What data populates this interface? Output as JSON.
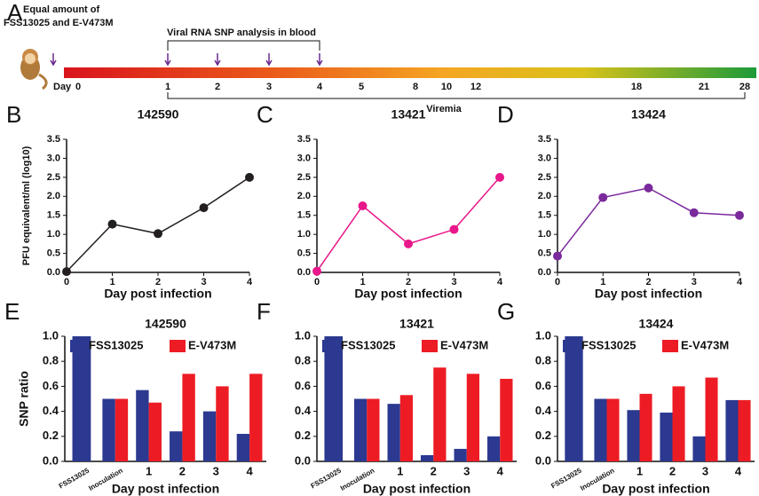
{
  "timeline": {
    "panel_label": "A",
    "note_lines": [
      "Equal amount of",
      "FSS13025 and E-V473M"
    ],
    "bracket_label": "Viral RNA SNP analysis in blood",
    "axis_label": "Day",
    "days": [
      0,
      1,
      2,
      3,
      4,
      5,
      8,
      10,
      12,
      18,
      21,
      28
    ],
    "span_label": "Viremia"
  },
  "chart_data": [
    {
      "type": "line",
      "panel_label": "B",
      "title": "142590",
      "y_label": "PFU equivalent/ml (log10)",
      "x_label": "Day post infection",
      "x": [
        0,
        1,
        2,
        3,
        4
      ],
      "values": [
        0.02,
        1.27,
        1.02,
        1.7,
        2.5
      ],
      "color": "#231f20",
      "xlim": [
        0,
        4
      ],
      "xticks": [
        0,
        1,
        2,
        3,
        4
      ],
      "ylim": [
        0,
        3.5
      ],
      "yticks": [
        {
          "value": 0,
          "label": "0.0"
        },
        0.5,
        {
          "value": 1,
          "label": "1.0"
        },
        1.5,
        {
          "value": 2,
          "label": "2.0"
        },
        2.5,
        {
          "value": 3,
          "label": "3.0"
        },
        3.5
      ]
    },
    {
      "type": "line",
      "panel_label": "C",
      "title": "13421",
      "x_label": "Day post infection",
      "x": [
        0,
        1,
        2,
        3,
        4
      ],
      "values": [
        0.03,
        1.75,
        0.75,
        1.13,
        2.5
      ],
      "color": "#e8178a",
      "xlim": [
        0,
        4
      ],
      "xticks": [
        0,
        1,
        2,
        3,
        4
      ],
      "ylim": [
        0,
        3.5
      ],
      "yticks": [
        {
          "value": 0,
          "label": "0.0"
        },
        0.5,
        {
          "value": 1,
          "label": "1.0"
        },
        1.5,
        {
          "value": 2,
          "label": "2.0"
        },
        2.5,
        {
          "value": 3,
          "label": "3.0"
        },
        3.5
      ]
    },
    {
      "type": "line",
      "panel_label": "D",
      "title": "13424",
      "x_label": "Day post infection",
      "x": [
        0,
        1,
        2,
        3,
        4
      ],
      "values": [
        0.43,
        1.97,
        2.22,
        1.57,
        1.5
      ],
      "color": "#7b2a9c",
      "xlim": [
        0,
        4
      ],
      "xticks": [
        0,
        1,
        2,
        3,
        4
      ],
      "ylim": [
        0,
        3.5
      ],
      "yticks": [
        {
          "value": 0,
          "label": "0.0"
        },
        0.5,
        {
          "value": 1,
          "label": "1.0"
        },
        1.5,
        {
          "value": 2,
          "label": "2.0"
        },
        2.5,
        {
          "value": 3,
          "label": "3.0"
        },
        3.5
      ]
    },
    {
      "type": "bar",
      "panel_label": "E",
      "title": "142590",
      "y_label": "SNP ratio",
      "x_label": "Day post infection",
      "categories": [
        "FSS13025",
        "Inoculation",
        "1",
        "2",
        "3",
        "4"
      ],
      "series": [
        {
          "name": "FSS13025",
          "color": "#2b3990",
          "values": [
            1.0,
            0.5,
            0.57,
            0.24,
            0.4,
            0.22
          ]
        },
        {
          "name": "E-V473M",
          "color": "#ed1c24",
          "values": [
            null,
            0.5,
            0.47,
            0.7,
            0.6,
            0.7
          ]
        }
      ],
      "ylim": [
        0,
        1
      ],
      "yticks": [
        {
          "value": 0,
          "label": "0.0"
        },
        0.2,
        0.4,
        0.6,
        0.8,
        {
          "value": 1,
          "label": "1.0"
        }
      ]
    },
    {
      "type": "bar",
      "panel_label": "F",
      "title": "13421",
      "x_label": "Day post infection",
      "categories": [
        "FSS13025",
        "Inoculation",
        "1",
        "2",
        "3",
        "4"
      ],
      "series": [
        {
          "name": "FSS13025",
          "color": "#2b3990",
          "values": [
            1.0,
            0.5,
            0.46,
            0.05,
            0.1,
            0.2
          ]
        },
        {
          "name": "E-V473M",
          "color": "#ed1c24",
          "values": [
            null,
            0.5,
            0.53,
            0.75,
            0.7,
            0.66
          ]
        }
      ],
      "ylim": [
        0,
        1
      ],
      "yticks": [
        {
          "value": 0,
          "label": "0.0"
        },
        0.2,
        0.4,
        0.6,
        0.8,
        {
          "value": 1,
          "label": "1.0"
        }
      ]
    },
    {
      "type": "bar",
      "panel_label": "G",
      "title": "13424",
      "x_label": "Day post infection",
      "categories": [
        "FSS13025",
        "Inoculation",
        "1",
        "2",
        "3",
        "4"
      ],
      "series": [
        {
          "name": "FSS13025",
          "color": "#2b3990",
          "values": [
            1.0,
            0.5,
            0.41,
            0.39,
            0.2,
            0.49
          ]
        },
        {
          "name": "E-V473M",
          "color": "#ed1c24",
          "values": [
            null,
            0.5,
            0.54,
            0.6,
            0.67,
            0.49
          ]
        }
      ],
      "ylim": [
        0,
        1
      ],
      "yticks": [
        {
          "value": 0,
          "label": "0.0"
        },
        0.2,
        0.4,
        0.6,
        0.8,
        {
          "value": 1,
          "label": "1.0"
        }
      ]
    }
  ]
}
